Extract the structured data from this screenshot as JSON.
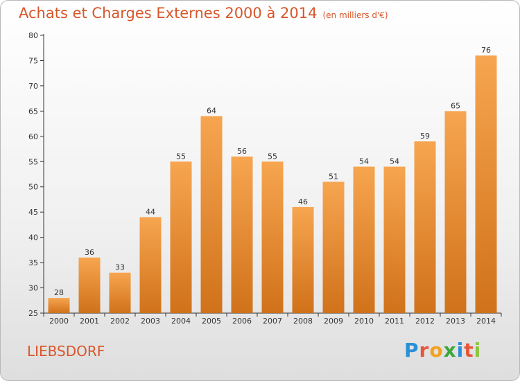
{
  "header": {
    "title": "Achats et Charges Externes 2000 à 2014",
    "subtitle": "(en milliers d'€)"
  },
  "footer": {
    "location": "LIEBSDORF",
    "brand": [
      "P",
      "r",
      "o",
      "x",
      "i",
      "t",
      "i"
    ],
    "brand_colors": [
      "#2a8fd6",
      "#e8553a",
      "#f2a11f",
      "#3aa83a",
      "#2a8fd6",
      "#e8553a",
      "#8cc63e"
    ]
  },
  "chart_data": {
    "type": "bar",
    "title": "Achats et Charges Externes 2000 à 2014",
    "subtitle": "(en milliers d'€)",
    "categories": [
      "2000",
      "2001",
      "2002",
      "2003",
      "2004",
      "2005",
      "2006",
      "2007",
      "2008",
      "2009",
      "2010",
      "2011",
      "2012",
      "2013",
      "2014"
    ],
    "values": [
      28,
      36,
      33,
      44,
      55,
      64,
      56,
      55,
      46,
      51,
      54,
      54,
      59,
      65,
      76
    ],
    "ylim": [
      25,
      80
    ],
    "yticks": [
      25,
      30,
      35,
      40,
      45,
      50,
      55,
      60,
      65,
      70,
      75,
      80
    ],
    "grid": false,
    "bar_color_top": "#f7a550",
    "bar_color_bottom": "#d0721a",
    "axis_color": "#333333"
  }
}
